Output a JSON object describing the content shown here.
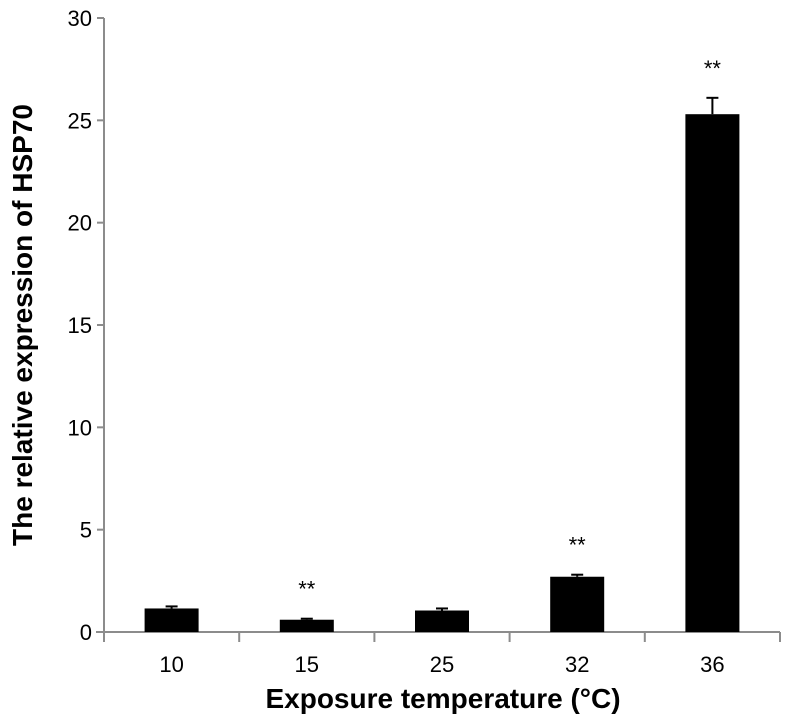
{
  "chart_data": {
    "type": "bar",
    "title": "",
    "xlabel": "Exposure temperature (°C)",
    "ylabel": "The relative expression of HSP70",
    "categories": [
      "10",
      "15",
      "25",
      "32",
      "36"
    ],
    "values": [
      1.15,
      0.6,
      1.05,
      2.7,
      25.3
    ],
    "errors": [
      0.1,
      0.05,
      0.1,
      0.1,
      0.8
    ],
    "significance": [
      "",
      "**",
      "",
      "**",
      "**"
    ],
    "ylim": [
      0,
      30
    ],
    "yticks": [
      0,
      5,
      10,
      15,
      20,
      25,
      30
    ],
    "grid": false,
    "legend": null,
    "colors": {
      "bar": "#000000",
      "axis": "#8c8c8c",
      "text": "#000000"
    }
  }
}
